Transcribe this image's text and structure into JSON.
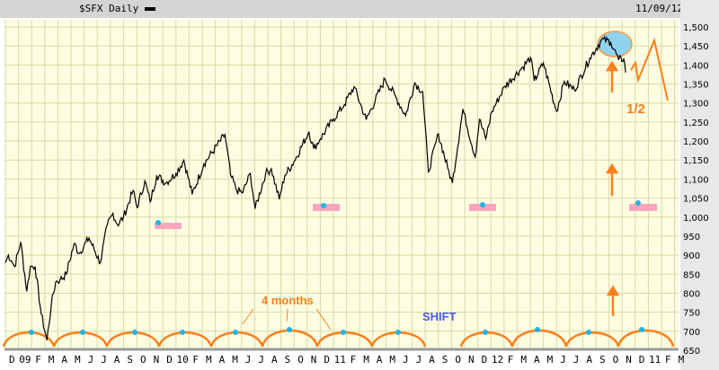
{
  "header": {
    "title": "$SFX Daily",
    "date": "11/09/12"
  },
  "colors": {
    "background": "#fdfde2",
    "grid": "#d9d9a6",
    "price": "#000000",
    "annotation": "#ff7f1a",
    "cycle_dot": "#1ab4e8",
    "box": "#f7a6bd",
    "ellipse_fill": "#8fd3ee",
    "shift_text": "#4a5cf0"
  },
  "chart_data": {
    "type": "line",
    "title": "$SFX Daily",
    "ylim": [
      650,
      1500
    ],
    "yticks": [
      1500,
      1450,
      1400,
      1350,
      1300,
      1250,
      1200,
      1150,
      1100,
      1050,
      1000,
      950,
      900,
      850,
      800,
      750,
      700,
      650
    ],
    "ytick_labels": [
      "1,500",
      "1,450",
      "1,400",
      "1,350",
      "1,300",
      "1,250",
      "1,200",
      "1,150",
      "1,100",
      "1,050",
      "1,000",
      "950",
      "900",
      "850",
      "800",
      "750",
      "700",
      "650"
    ],
    "x_range": [
      "2008-12",
      "2013-03"
    ],
    "xtick_labels": [
      "D",
      "09",
      "F",
      "M",
      "A",
      "M",
      "J",
      "J",
      "A",
      "S",
      "O",
      "N",
      "D",
      "10",
      "F",
      "M",
      "A",
      "M",
      "J",
      "J",
      "A",
      "S",
      "O",
      "N",
      "D",
      "11",
      "F",
      "M",
      "A",
      "M",
      "J",
      "J",
      "A",
      "S",
      "O",
      "N",
      "D",
      "12",
      "F",
      "M",
      "A",
      "M",
      "J",
      "J",
      "A",
      "S",
      "O",
      "N",
      "D",
      "11",
      "F",
      "M"
    ],
    "grid": true,
    "series": [
      {
        "points": [
          [
            "2008-12-01",
            880
          ],
          [
            "2008-12-08",
            900
          ],
          [
            "2008-12-15",
            885
          ],
          [
            "2008-12-22",
            870
          ],
          [
            "2009-01-06",
            935
          ],
          [
            "2009-01-20",
            805
          ],
          [
            "2009-01-28",
            870
          ],
          [
            "2009-02-09",
            870
          ],
          [
            "2009-02-23",
            745
          ],
          [
            "2009-03-06",
            676
          ],
          [
            "2009-03-16",
            770
          ],
          [
            "2009-03-26",
            830
          ],
          [
            "2009-04-06",
            835
          ],
          [
            "2009-04-20",
            850
          ],
          [
            "2009-05-08",
            930
          ],
          [
            "2009-05-20",
            905
          ],
          [
            "2009-06-12",
            945
          ],
          [
            "2009-07-08",
            880
          ],
          [
            "2009-07-24",
            980
          ],
          [
            "2009-08-07",
            1010
          ],
          [
            "2009-08-17",
            980
          ],
          [
            "2009-09-01",
            1000
          ],
          [
            "2009-09-23",
            1070
          ],
          [
            "2009-10-02",
            1025
          ],
          [
            "2009-10-20",
            1095
          ],
          [
            "2009-11-02",
            1040
          ],
          [
            "2009-11-17",
            1110
          ],
          [
            "2009-12-08",
            1090
          ],
          [
            "2009-12-31",
            1115
          ],
          [
            "2010-01-19",
            1150
          ],
          [
            "2010-02-08",
            1060
          ],
          [
            "2010-03-05",
            1140
          ],
          [
            "2010-04-23",
            1217
          ],
          [
            "2010-05-06",
            1110
          ],
          [
            "2010-05-20",
            1070
          ],
          [
            "2010-06-04",
            1065
          ],
          [
            "2010-06-21",
            1115
          ],
          [
            "2010-07-02",
            1022
          ],
          [
            "2010-07-26",
            1115
          ],
          [
            "2010-08-09",
            1127
          ],
          [
            "2010-08-27",
            1047
          ],
          [
            "2010-09-10",
            1110
          ],
          [
            "2010-10-01",
            1146
          ],
          [
            "2010-11-05",
            1225
          ],
          [
            "2010-11-16",
            1180
          ],
          [
            "2010-12-01",
            1206
          ],
          [
            "2010-12-31",
            1258
          ],
          [
            "2011-01-26",
            1296
          ],
          [
            "2011-02-18",
            1343
          ],
          [
            "2011-03-16",
            1256
          ],
          [
            "2011-04-29",
            1363
          ],
          [
            "2011-05-23",
            1317
          ],
          [
            "2011-06-16",
            1267
          ],
          [
            "2011-07-07",
            1353
          ],
          [
            "2011-07-25",
            1330
          ],
          [
            "2011-08-08",
            1119
          ],
          [
            "2011-08-31",
            1219
          ],
          [
            "2011-09-22",
            1130
          ],
          [
            "2011-10-03",
            1090
          ],
          [
            "2011-10-27",
            1284
          ],
          [
            "2011-11-25",
            1158
          ],
          [
            "2011-12-05",
            1257
          ],
          [
            "2011-12-19",
            1206
          ],
          [
            "2012-01-03",
            1277
          ],
          [
            "2012-02-03",
            1344
          ],
          [
            "2012-03-14",
            1395
          ],
          [
            "2012-04-02",
            1419
          ],
          [
            "2012-04-10",
            1358
          ],
          [
            "2012-05-01",
            1405
          ],
          [
            "2012-06-01",
            1278
          ],
          [
            "2012-06-19",
            1357
          ],
          [
            "2012-07-12",
            1334
          ],
          [
            "2012-08-17",
            1418
          ],
          [
            "2012-09-14",
            1466
          ],
          [
            "2012-10-05",
            1461
          ],
          [
            "2012-10-23",
            1413
          ],
          [
            "2012-11-05",
            1417
          ],
          [
            "2012-11-09",
            1380
          ]
        ]
      }
    ],
    "annotations": {
      "cycle_label": "4 months",
      "shift_label": "SHIFT",
      "half_label": "1/2"
    }
  }
}
